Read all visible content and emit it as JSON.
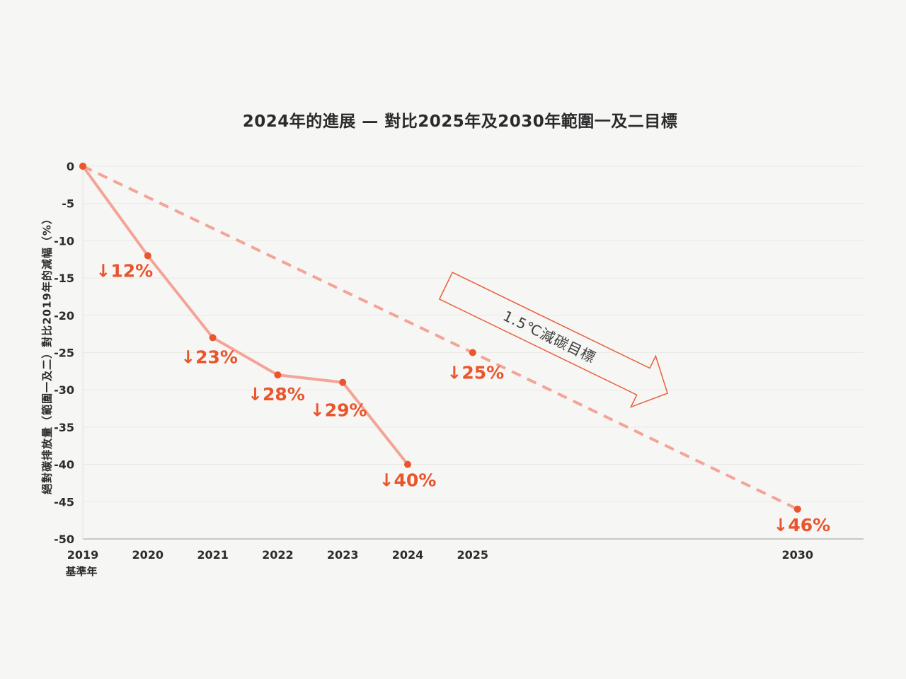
{
  "page": {
    "background": "#f6f6f4"
  },
  "chart_data": {
    "type": "line",
    "title": "2024年的進展 — 對比2025年及2030年範圍一及二目標",
    "ylabel": "絕對碳排放量（範圍一及二）對比2019年的減幅（%）",
    "x_baseline_year_note": "基準年",
    "ylim": [
      -50,
      0
    ],
    "yticks": [
      0,
      -5,
      -10,
      -15,
      -20,
      -25,
      -30,
      -35,
      -40,
      -45,
      -50
    ],
    "xticks": [
      "2019",
      "2020",
      "2021",
      "2022",
      "2023",
      "2024",
      "2025",
      "2030"
    ],
    "grid": true,
    "series": [
      {
        "name": "actual-progress",
        "style": "solid",
        "points": [
          {
            "year": 2019,
            "value": 0,
            "label": "",
            "label_offset": [
              0,
              0
            ]
          },
          {
            "year": 2020,
            "value": -12,
            "label": "↓12%",
            "label_offset": [
              -33,
              21
            ]
          },
          {
            "year": 2021,
            "value": -23,
            "label": "↓23%",
            "label_offset": [
              -5,
              27
            ]
          },
          {
            "year": 2022,
            "value": -28,
            "label": "↓28%",
            "label_offset": [
              -2,
              27
            ]
          },
          {
            "year": 2023,
            "value": -29,
            "label": "↓29%",
            "label_offset": [
              -6,
              39
            ]
          },
          {
            "year": 2024,
            "value": -40,
            "label": "↓40%",
            "label_offset": [
              0,
              22
            ]
          }
        ]
      },
      {
        "name": "target-path",
        "style": "dashed",
        "points": [
          {
            "year": 2019,
            "value": 0,
            "label": "",
            "label_offset": [
              0,
              0
            ]
          },
          {
            "year": 2025,
            "value": -25,
            "label": "↓25%",
            "label_offset": [
              4,
              28
            ]
          },
          {
            "year": 2030,
            "value": -46,
            "label": "↓46%",
            "label_offset": [
              6,
              22
            ]
          }
        ]
      }
    ],
    "annotation": {
      "text": "1.5℃減碳目標"
    },
    "colors": {
      "line": "#f4a496",
      "marker": "#e9552d",
      "label": "#e9552d",
      "arrow_outline": "#e9603c",
      "annotation_text": "#3c3c3c",
      "grid": "#e9e9e6",
      "axis": "#999999",
      "axis_vertical": "#e3e3e0",
      "text": "#2b2b2b",
      "background": "#f6f6f4"
    }
  }
}
